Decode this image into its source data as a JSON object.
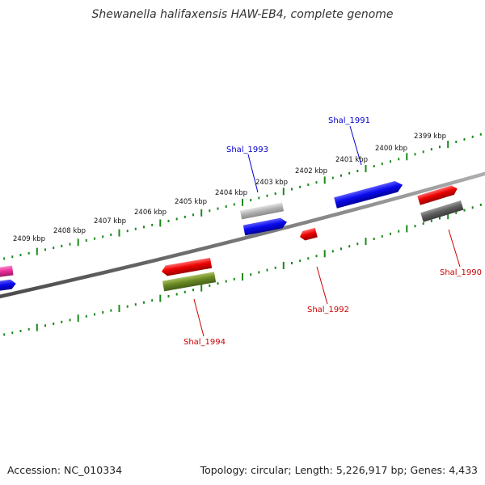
{
  "title": "Shewanella halifaxensis HAW-EB4, complete genome",
  "footer": {
    "accession": "Accession: NC_010334",
    "summary": "Topology: circular; Length: 5,226,917 bp; Genes: 4,433"
  },
  "colors": {
    "backbone": "#7a7a7a",
    "tick": "#1a8a1a",
    "forward_label": "#0000cc",
    "reverse_label": "#cc0000",
    "gene_red": "#ee0000",
    "gene_blue": "#0a0aee",
    "gene_grey_light": "#b4b4b4",
    "gene_grey_dark": "#5f5f5f",
    "gene_olive": "#6b8a23",
    "gene_pink": "#e8309a"
  },
  "scale_labels": [
    "2399 kbp",
    "2400 kbp",
    "2401 kbp",
    "2402 kbp",
    "2403 kbp",
    "2404 kbp",
    "2405 kbp",
    "2406 kbp",
    "2407 kbp",
    "2408 kbp",
    "2409 kbp"
  ],
  "gene_labels": [
    {
      "name": "Shal_1991",
      "strand": "forward"
    },
    {
      "name": "Shal_1993",
      "strand": "forward"
    },
    {
      "name": "Shal_1990",
      "strand": "reverse"
    },
    {
      "name": "Shal_1992",
      "strand": "reverse"
    },
    {
      "name": "Shal_1994",
      "strand": "reverse"
    }
  ]
}
